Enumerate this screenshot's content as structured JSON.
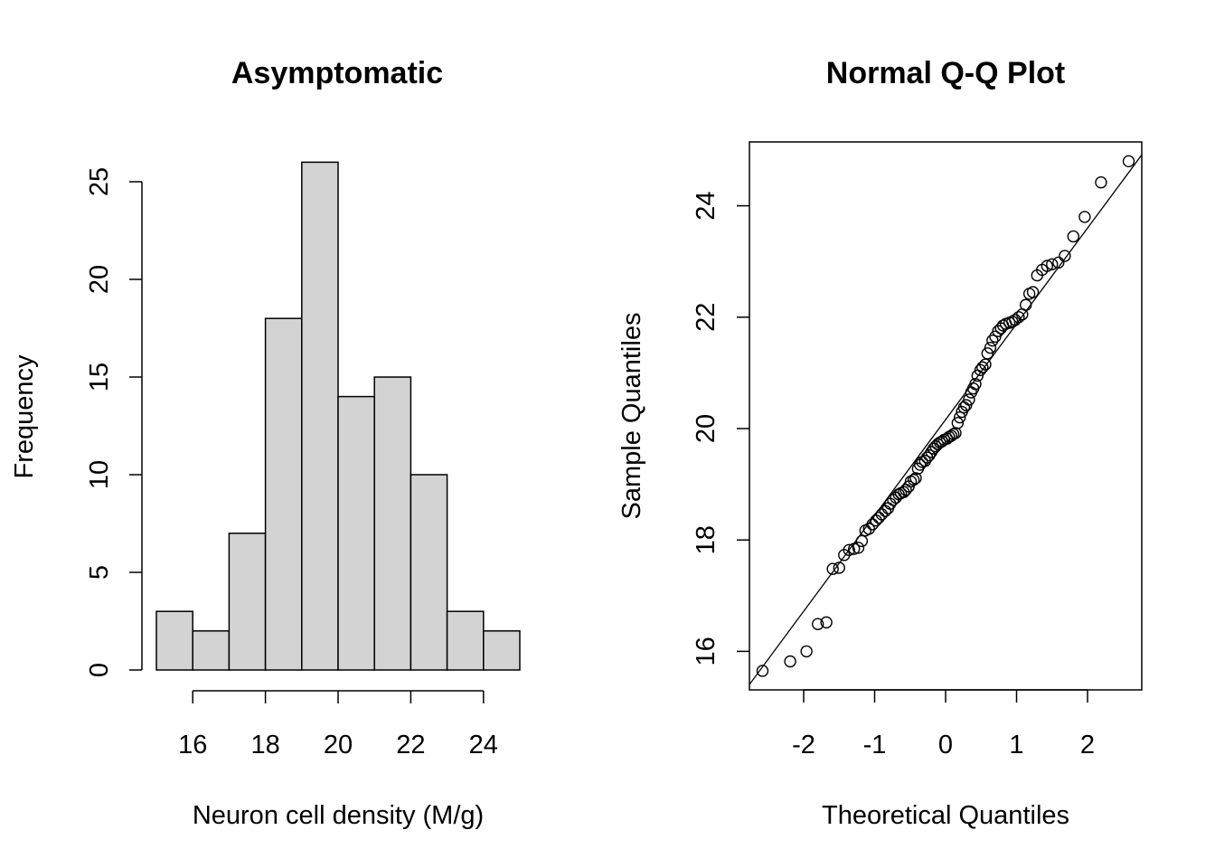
{
  "chart_data": [
    {
      "type": "bar",
      "title": "Asymptomatic",
      "xlabel": "Neuron cell density (M/g)",
      "ylabel": "Frequency",
      "bins": [
        [
          15,
          16
        ],
        [
          16,
          17
        ],
        [
          17,
          18
        ],
        [
          18,
          19
        ],
        [
          19,
          20
        ],
        [
          20,
          21
        ],
        [
          21,
          22
        ],
        [
          22,
          23
        ],
        [
          23,
          24
        ],
        [
          24,
          25
        ]
      ],
      "values": [
        3,
        2,
        7,
        18,
        26,
        14,
        15,
        10,
        3,
        2
      ],
      "xticks": [
        "16",
        "18",
        "20",
        "22",
        "24"
      ],
      "yticks": [
        "0",
        "5",
        "10",
        "15",
        "20",
        "25"
      ],
      "xlim": [
        15,
        25
      ],
      "ylim": [
        0,
        26
      ],
      "bar_color": "#d3d3d3",
      "grid": false
    },
    {
      "type": "scatter",
      "title": "Normal Q-Q Plot",
      "xlabel": "Theoretical Quantiles",
      "ylabel": "Sample Quantiles",
      "xticks": [
        "-2",
        "-1",
        "0",
        "1",
        "2"
      ],
      "yticks": [
        "16",
        "18",
        "20",
        "22",
        "24"
      ],
      "xlim": [
        -2.8,
        2.8
      ],
      "ylim": [
        15.3,
        25.2
      ],
      "reference_line": {
        "slope": 1.72,
        "intercept": 20.16
      },
      "points": [
        [
          -2.58,
          15.65
        ],
        [
          -2.19,
          15.82
        ],
        [
          -1.96,
          16.0
        ],
        [
          -1.8,
          16.49
        ],
        [
          -1.68,
          16.52
        ],
        [
          -1.59,
          17.48
        ],
        [
          -1.5,
          17.5
        ],
        [
          -1.43,
          17.73
        ],
        [
          -1.36,
          17.82
        ],
        [
          -1.29,
          17.84
        ],
        [
          -1.23,
          17.86
        ],
        [
          -1.18,
          17.98
        ],
        [
          -1.13,
          18.17
        ],
        [
          -1.08,
          18.2
        ],
        [
          -1.03,
          18.28
        ],
        [
          -0.98,
          18.35
        ],
        [
          -0.94,
          18.4
        ],
        [
          -0.9,
          18.46
        ],
        [
          -0.85,
          18.52
        ],
        [
          -0.81,
          18.57
        ],
        [
          -0.78,
          18.65
        ],
        [
          -0.74,
          18.72
        ],
        [
          -0.7,
          18.76
        ],
        [
          -0.66,
          18.82
        ],
        [
          -0.63,
          18.84
        ],
        [
          -0.59,
          18.86
        ],
        [
          -0.56,
          18.9
        ],
        [
          -0.52,
          18.96
        ],
        [
          -0.49,
          19.05
        ],
        [
          -0.45,
          19.08
        ],
        [
          -0.42,
          19.11
        ],
        [
          -0.39,
          19.28
        ],
        [
          -0.36,
          19.35
        ],
        [
          -0.33,
          19.4
        ],
        [
          -0.29,
          19.42
        ],
        [
          -0.26,
          19.48
        ],
        [
          -0.23,
          19.52
        ],
        [
          -0.2,
          19.58
        ],
        [
          -0.17,
          19.64
        ],
        [
          -0.14,
          19.68
        ],
        [
          -0.11,
          19.72
        ],
        [
          -0.08,
          19.75
        ],
        [
          -0.05,
          19.77
        ],
        [
          -0.02,
          19.8
        ],
        [
          0.02,
          19.82
        ],
        [
          0.05,
          19.85
        ],
        [
          0.08,
          19.87
        ],
        [
          0.11,
          19.9
        ],
        [
          0.14,
          19.92
        ],
        [
          0.17,
          20.1
        ],
        [
          0.2,
          20.2
        ],
        [
          0.23,
          20.3
        ],
        [
          0.26,
          20.38
        ],
        [
          0.29,
          20.42
        ],
        [
          0.33,
          20.52
        ],
        [
          0.36,
          20.65
        ],
        [
          0.39,
          20.72
        ],
        [
          0.42,
          20.8
        ],
        [
          0.45,
          20.95
        ],
        [
          0.49,
          21.05
        ],
        [
          0.52,
          21.1
        ],
        [
          0.56,
          21.15
        ],
        [
          0.59,
          21.35
        ],
        [
          0.63,
          21.45
        ],
        [
          0.66,
          21.58
        ],
        [
          0.7,
          21.65
        ],
        [
          0.74,
          21.75
        ],
        [
          0.78,
          21.8
        ],
        [
          0.81,
          21.85
        ],
        [
          0.85,
          21.88
        ],
        [
          0.9,
          21.9
        ],
        [
          0.94,
          21.92
        ],
        [
          0.98,
          21.95
        ],
        [
          1.03,
          22.0
        ],
        [
          1.08,
          22.05
        ],
        [
          1.13,
          22.22
        ],
        [
          1.18,
          22.42
        ],
        [
          1.23,
          22.45
        ],
        [
          1.29,
          22.75
        ],
        [
          1.36,
          22.85
        ],
        [
          1.43,
          22.92
        ],
        [
          1.5,
          22.95
        ],
        [
          1.59,
          22.98
        ],
        [
          1.68,
          23.1
        ],
        [
          1.8,
          23.45
        ],
        [
          1.96,
          23.8
        ],
        [
          2.19,
          24.42
        ],
        [
          2.58,
          24.8
        ]
      ]
    }
  ]
}
